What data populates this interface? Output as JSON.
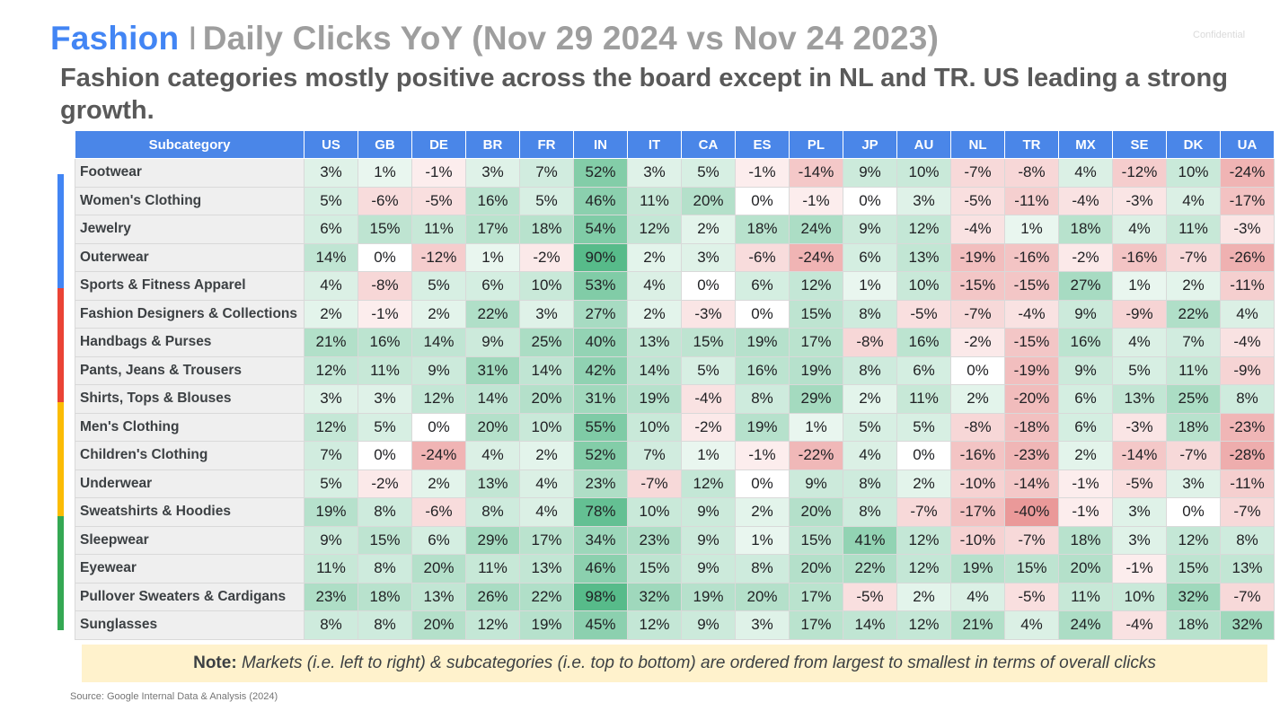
{
  "header": {
    "brand": "Fashion",
    "separator": "I",
    "title": "Daily Clicks YoY (Nov 29 2024 vs Nov 24 2023)",
    "subtitle": "Fashion categories mostly positive across the board except in NL and TR. US leading a strong growth.",
    "confidential": "Confidential"
  },
  "sidebar_colors": [
    "#4285f4",
    "#ea4335",
    "#fbbc04",
    "#34a853"
  ],
  "chart_data": {
    "type": "table",
    "row_header": "Subcategory",
    "columns": [
      "US",
      "GB",
      "DE",
      "BR",
      "FR",
      "IN",
      "IT",
      "CA",
      "ES",
      "PL",
      "JP",
      "AU",
      "NL",
      "TR",
      "MX",
      "SE",
      "DK",
      "UA"
    ],
    "unit": "%",
    "rows": [
      {
        "name": "Footwear",
        "values": [
          3,
          1,
          -1,
          3,
          7,
          52,
          3,
          5,
          -1,
          -14,
          9,
          10,
          -7,
          -8,
          4,
          -12,
          10,
          -24
        ]
      },
      {
        "name": "Women's Clothing",
        "values": [
          5,
          -6,
          -5,
          16,
          5,
          46,
          11,
          20,
          0,
          -1,
          0,
          3,
          -5,
          -11,
          -4,
          -3,
          4,
          -17
        ]
      },
      {
        "name": "Jewelry",
        "values": [
          6,
          15,
          11,
          17,
          18,
          54,
          12,
          2,
          18,
          24,
          9,
          12,
          -4,
          1,
          18,
          4,
          11,
          -3
        ]
      },
      {
        "name": "Outerwear",
        "values": [
          14,
          0,
          -12,
          1,
          -2,
          90,
          2,
          3,
          -6,
          -24,
          6,
          13,
          -19,
          -16,
          -2,
          -16,
          -7,
          -26
        ]
      },
      {
        "name": "Sports & Fitness Apparel",
        "values": [
          4,
          -8,
          5,
          6,
          10,
          53,
          4,
          0,
          6,
          12,
          1,
          10,
          -15,
          -15,
          27,
          1,
          2,
          -11
        ]
      },
      {
        "name": "Fashion Designers & Collections",
        "values": [
          2,
          -1,
          2,
          22,
          3,
          27,
          2,
          -3,
          0,
          15,
          8,
          -5,
          -7,
          -4,
          9,
          -9,
          22,
          4
        ]
      },
      {
        "name": "Handbags & Purses",
        "values": [
          21,
          16,
          14,
          9,
          25,
          40,
          13,
          15,
          19,
          17,
          -8,
          16,
          -2,
          -15,
          16,
          4,
          7,
          -4
        ]
      },
      {
        "name": "Pants, Jeans & Trousers",
        "values": [
          12,
          11,
          9,
          31,
          14,
          42,
          14,
          5,
          16,
          19,
          8,
          6,
          0,
          -19,
          9,
          5,
          11,
          -9
        ]
      },
      {
        "name": "Shirts, Tops & Blouses",
        "values": [
          3,
          3,
          12,
          14,
          20,
          31,
          19,
          -4,
          8,
          29,
          2,
          11,
          2,
          -20,
          6,
          13,
          25,
          8
        ]
      },
      {
        "name": "Men's Clothing",
        "values": [
          12,
          5,
          0,
          20,
          10,
          55,
          10,
          -2,
          19,
          1,
          5,
          5,
          -8,
          -18,
          6,
          -3,
          18,
          -23
        ]
      },
      {
        "name": "Children's Clothing",
        "values": [
          7,
          0,
          -24,
          4,
          2,
          52,
          7,
          1,
          -1,
          -22,
          4,
          0,
          -16,
          -23,
          2,
          -14,
          -7,
          -28
        ]
      },
      {
        "name": "Underwear",
        "values": [
          5,
          -2,
          2,
          13,
          4,
          23,
          -7,
          12,
          0,
          9,
          8,
          2,
          -10,
          -14,
          -1,
          -5,
          3,
          -11
        ]
      },
      {
        "name": "Sweatshirts & Hoodies",
        "values": [
          19,
          8,
          -6,
          8,
          4,
          78,
          10,
          9,
          2,
          20,
          8,
          -7,
          -17,
          -40,
          -1,
          3,
          0,
          -7
        ]
      },
      {
        "name": "Sleepwear",
        "values": [
          9,
          15,
          6,
          29,
          17,
          34,
          23,
          9,
          1,
          15,
          41,
          12,
          -10,
          -7,
          18,
          3,
          12,
          8
        ]
      },
      {
        "name": "Eyewear",
        "values": [
          11,
          8,
          20,
          11,
          13,
          46,
          15,
          9,
          8,
          20,
          22,
          12,
          19,
          15,
          20,
          -1,
          15,
          13
        ]
      },
      {
        "name": "Pullover Sweaters & Cardigans",
        "values": [
          23,
          18,
          13,
          26,
          22,
          98,
          32,
          19,
          20,
          17,
          -5,
          2,
          4,
          -5,
          11,
          10,
          32,
          -7
        ]
      },
      {
        "name": "Sunglasses",
        "values": [
          8,
          8,
          20,
          12,
          19,
          45,
          12,
          9,
          3,
          17,
          14,
          12,
          21,
          4,
          24,
          -4,
          18,
          32
        ]
      }
    ]
  },
  "note": {
    "label": "Note:",
    "text": "Markets (i.e. left to right) & subcategories (i.e. top to bottom) are ordered from largest to smallest in terms of overall clicks"
  },
  "source": "Source: Google Internal Data & Analysis (2024)"
}
